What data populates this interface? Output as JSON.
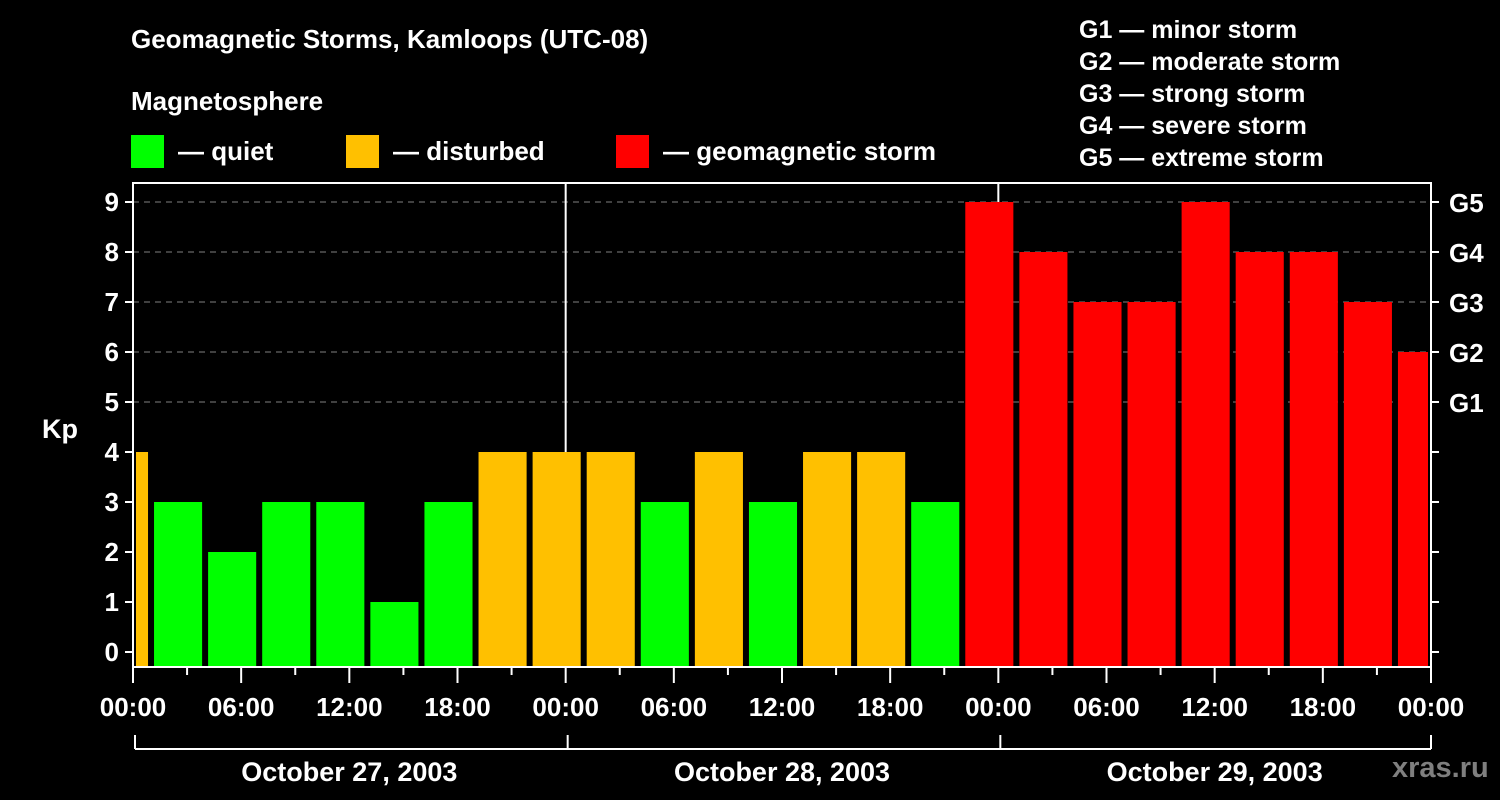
{
  "title": "Geomagnetic Storms, Kamloops (UTC-08)",
  "subtitle": "Magnetosphere",
  "legend": [
    {
      "label": "— quiet",
      "color": "#00ff00"
    },
    {
      "label": "— disturbed",
      "color": "#ffc000"
    },
    {
      "label": "— geomagnetic storm",
      "color": "#ff0000"
    }
  ],
  "g_scale": [
    "G1 — minor storm",
    "G2 — moderate storm",
    "G3 — strong storm",
    "G4 — severe storm",
    "G5 — extreme storm"
  ],
  "watermark": "xras.ru",
  "chart_data": {
    "type": "bar",
    "title": "Geomagnetic Storms, Kamloops (UTC-08)",
    "ylabel": "Kp",
    "ylim": [
      0,
      9
    ],
    "yticks": [
      0,
      1,
      2,
      3,
      4,
      5,
      6,
      7,
      8,
      9
    ],
    "right_axis_labels": {
      "5": "G1",
      "6": "G2",
      "7": "G3",
      "8": "G4",
      "9": "G5"
    },
    "grid": "dashed horizontal at Kp 5-9",
    "x_tick_labels": [
      "00:00",
      "06:00",
      "12:00",
      "18:00",
      "00:00",
      "06:00",
      "12:00",
      "18:00",
      "00:00",
      "06:00",
      "12:00",
      "18:00",
      "00:00"
    ],
    "dates": [
      "October 27, 2003",
      "October 28, 2003",
      "October 29, 2003"
    ],
    "bin_hours": 3,
    "first_bin_start_hour": -2,
    "categories": [
      "Oct27 -02:00",
      "Oct27 01:00",
      "Oct27 04:00",
      "Oct27 07:00",
      "Oct27 10:00",
      "Oct27 13:00",
      "Oct27 16:00",
      "Oct27 19:00",
      "Oct27 22:00",
      "Oct28 01:00",
      "Oct28 04:00",
      "Oct28 07:00",
      "Oct28 10:00",
      "Oct28 13:00",
      "Oct28 16:00",
      "Oct28 19:00",
      "Oct28 22:00",
      "Oct29 01:00",
      "Oct29 04:00",
      "Oct29 07:00",
      "Oct29 10:00",
      "Oct29 13:00",
      "Oct29 16:00",
      "Oct29 19:00",
      "Oct29 22:00"
    ],
    "values": [
      4,
      3,
      2,
      3,
      3,
      1,
      3,
      4,
      4,
      4,
      3,
      4,
      3,
      4,
      4,
      3,
      9,
      8,
      7,
      7,
      9,
      8,
      8,
      7,
      6
    ],
    "colors": {
      "quiet": "#00ff00",
      "disturbed": "#ffc000",
      "storm": "#ff0000"
    },
    "thresholds": {
      "quiet_max": 3,
      "disturbed": 4,
      "storm_min": 5
    }
  }
}
